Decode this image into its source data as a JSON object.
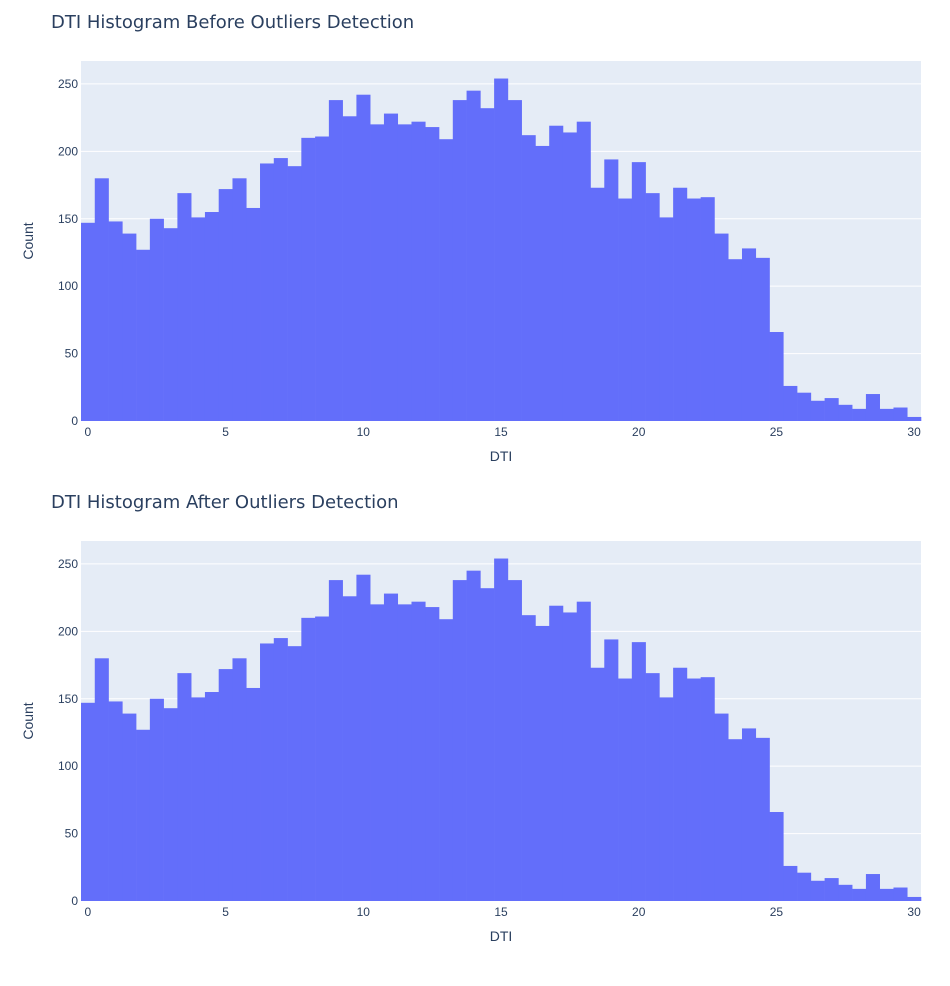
{
  "colors": {
    "bar": "#636efa",
    "plot_bg": "#e5ecf6",
    "grid": "#ffffff",
    "text": "#2a3f5f"
  },
  "chart_data": [
    {
      "type": "bar",
      "title": "DTI Histogram Before Outliers Detection",
      "xlabel": "DTI",
      "ylabel": "Count",
      "x_bin_start": -0.25,
      "x_bin_width": 0.5,
      "xlim": [
        -0.25,
        30.25
      ],
      "ylim": [
        0,
        267
      ],
      "x_ticks": [
        0,
        5,
        10,
        15,
        20,
        25,
        30
      ],
      "y_ticks": [
        0,
        50,
        100,
        150,
        200,
        250
      ],
      "values": [
        147,
        180,
        148,
        139,
        127,
        150,
        143,
        169,
        151,
        155,
        172,
        180,
        158,
        191,
        195,
        189,
        210,
        211,
        238,
        226,
        242,
        220,
        228,
        220,
        222,
        218,
        209,
        238,
        245,
        232,
        254,
        238,
        212,
        204,
        219,
        214,
        222,
        173,
        194,
        165,
        192,
        169,
        151,
        173,
        165,
        166,
        139,
        120,
        128,
        121,
        66,
        26,
        21,
        15,
        17,
        12,
        9,
        20,
        9,
        10,
        3
      ]
    },
    {
      "type": "bar",
      "title": "DTI Histogram After Outliers Detection",
      "xlabel": "DTI",
      "ylabel": "Count",
      "x_bin_start": -0.25,
      "x_bin_width": 0.5,
      "xlim": [
        -0.25,
        30.25
      ],
      "ylim": [
        0,
        267
      ],
      "x_ticks": [
        0,
        5,
        10,
        15,
        20,
        25,
        30
      ],
      "y_ticks": [
        0,
        50,
        100,
        150,
        200,
        250
      ],
      "values": [
        147,
        180,
        148,
        139,
        127,
        150,
        143,
        169,
        151,
        155,
        172,
        180,
        158,
        191,
        195,
        189,
        210,
        211,
        238,
        226,
        242,
        220,
        228,
        220,
        222,
        218,
        209,
        238,
        245,
        232,
        254,
        238,
        212,
        204,
        219,
        214,
        222,
        173,
        194,
        165,
        192,
        169,
        151,
        173,
        165,
        166,
        139,
        120,
        128,
        121,
        66,
        26,
        21,
        15,
        17,
        12,
        9,
        20,
        9,
        10,
        3
      ]
    }
  ]
}
